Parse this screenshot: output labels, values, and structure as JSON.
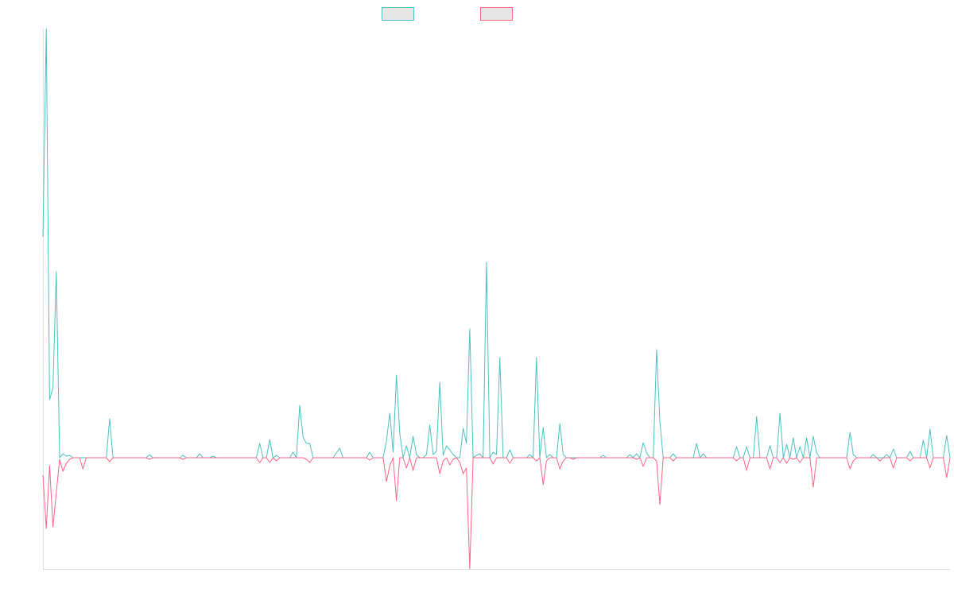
{
  "chart_data": {
    "type": "line",
    "title": "",
    "xlabel": "",
    "ylabel": "",
    "point_count": 273,
    "ylim": [
      -140,
      540
    ],
    "grid": false,
    "legend_placement": "top-center",
    "baseline_value": 0,
    "series": [
      {
        "name": "",
        "color": "#4bc0c0",
        "nonzero_points": [
          [
            0,
            278
          ],
          [
            1,
            540
          ],
          [
            2,
            73
          ],
          [
            3,
            88
          ],
          [
            4,
            234
          ],
          [
            6,
            5
          ],
          [
            7,
            2
          ],
          [
            8,
            3
          ],
          [
            20,
            49
          ],
          [
            32,
            4
          ],
          [
            42,
            3
          ],
          [
            47,
            5
          ],
          [
            51,
            2
          ],
          [
            65,
            18
          ],
          [
            68,
            23
          ],
          [
            70,
            3
          ],
          [
            75,
            7
          ],
          [
            77,
            66
          ],
          [
            78,
            26
          ],
          [
            79,
            18
          ],
          [
            80,
            18
          ],
          [
            88,
            6
          ],
          [
            89,
            12
          ],
          [
            98,
            7
          ],
          [
            103,
            21
          ],
          [
            104,
            56
          ],
          [
            105,
            7
          ],
          [
            106,
            104
          ],
          [
            107,
            31
          ],
          [
            109,
            15
          ],
          [
            111,
            27
          ],
          [
            112,
            4
          ],
          [
            115,
            4
          ],
          [
            116,
            41
          ],
          [
            117,
            4
          ],
          [
            118,
            8
          ],
          [
            119,
            95
          ],
          [
            120,
            3
          ],
          [
            121,
            15
          ],
          [
            122,
            10
          ],
          [
            123,
            4
          ],
          [
            126,
            37
          ],
          [
            127,
            18
          ],
          [
            128,
            162
          ],
          [
            130,
            3
          ],
          [
            131,
            5
          ],
          [
            133,
            246
          ],
          [
            135,
            7
          ],
          [
            136,
            4
          ],
          [
            137,
            126
          ],
          [
            140,
            10
          ],
          [
            146,
            4
          ],
          [
            148,
            126
          ],
          [
            150,
            38
          ],
          [
            152,
            4
          ],
          [
            155,
            43
          ],
          [
            156,
            4
          ],
          [
            168,
            3
          ],
          [
            176,
            4
          ],
          [
            178,
            5
          ],
          [
            180,
            19
          ],
          [
            181,
            6
          ],
          [
            184,
            136
          ],
          [
            185,
            46
          ],
          [
            189,
            5
          ],
          [
            196,
            18
          ],
          [
            198,
            5
          ],
          [
            208,
            14
          ],
          [
            211,
            14
          ],
          [
            214,
            52
          ],
          [
            218,
            15
          ],
          [
            221,
            56
          ],
          [
            223,
            17
          ],
          [
            225,
            25
          ],
          [
            227,
            14
          ],
          [
            229,
            25
          ],
          [
            231,
            27
          ],
          [
            232,
            6
          ],
          [
            242,
            32
          ],
          [
            243,
            4
          ],
          [
            249,
            4
          ],
          [
            253,
            4
          ],
          [
            255,
            11
          ],
          [
            260,
            8
          ],
          [
            264,
            22
          ],
          [
            266,
            36
          ],
          [
            271,
            28
          ]
        ]
      },
      {
        "name": "",
        "color": "#ff6384",
        "nonzero_points": [
          [
            0,
            -22
          ],
          [
            1,
            -89
          ],
          [
            2,
            -10
          ],
          [
            3,
            -87
          ],
          [
            4,
            -44
          ],
          [
            5,
            -2
          ],
          [
            6,
            -17
          ],
          [
            7,
            -7
          ],
          [
            8,
            -2
          ],
          [
            12,
            -14
          ],
          [
            20,
            -5
          ],
          [
            32,
            -2
          ],
          [
            42,
            -2
          ],
          [
            65,
            -6
          ],
          [
            68,
            -6
          ],
          [
            70,
            -4
          ],
          [
            79,
            -2
          ],
          [
            80,
            -6
          ],
          [
            98,
            -3
          ],
          [
            103,
            -30
          ],
          [
            104,
            -10
          ],
          [
            106,
            -54
          ],
          [
            109,
            -13
          ],
          [
            111,
            -16
          ],
          [
            119,
            -20
          ],
          [
            120,
            -4
          ],
          [
            122,
            -9
          ],
          [
            123,
            -2
          ],
          [
            125,
            -6
          ],
          [
            126,
            -20
          ],
          [
            127,
            -13
          ],
          [
            128,
            -140
          ],
          [
            135,
            -8
          ],
          [
            140,
            -7
          ],
          [
            148,
            -4
          ],
          [
            150,
            -34
          ],
          [
            151,
            -4
          ],
          [
            155,
            -14
          ],
          [
            156,
            -4
          ],
          [
            159,
            -2
          ],
          [
            178,
            -2
          ],
          [
            180,
            -11
          ],
          [
            184,
            -4
          ],
          [
            185,
            -59
          ],
          [
            189,
            -4
          ],
          [
            208,
            -4
          ],
          [
            211,
            -16
          ],
          [
            218,
            -14
          ],
          [
            221,
            -6
          ],
          [
            223,
            -7
          ],
          [
            225,
            -2
          ],
          [
            227,
            -6
          ],
          [
            231,
            -37
          ],
          [
            242,
            -14
          ],
          [
            243,
            -4
          ],
          [
            251,
            -4
          ],
          [
            255,
            -13
          ],
          [
            260,
            -4
          ],
          [
            266,
            -13
          ],
          [
            271,
            -25
          ]
        ]
      }
    ]
  }
}
